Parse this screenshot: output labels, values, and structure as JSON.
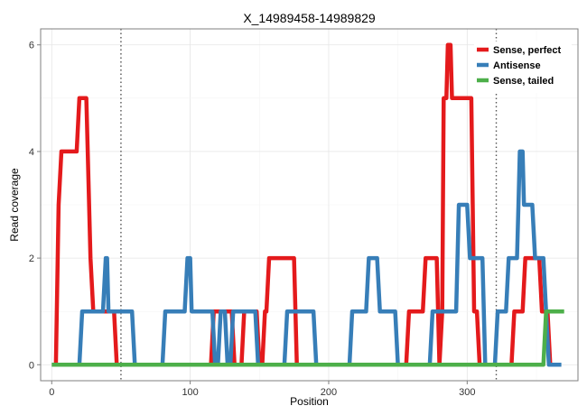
{
  "chart_data": {
    "type": "line",
    "title": "X_14989458-14989829",
    "xlabel": "Position",
    "ylabel": "Read coverage",
    "xlim": [
      -8,
      380
    ],
    "ylim": [
      -0.3,
      6.3
    ],
    "xticks": [
      0,
      100,
      200,
      300
    ],
    "yticks": [
      0,
      2,
      4,
      6
    ],
    "grid": true,
    "legend_position": "top-right",
    "vlines": [
      50,
      321
    ],
    "series": [
      {
        "name": "Sense, perfect",
        "color": "#e41a1c",
        "points": [
          [
            3,
            0
          ],
          [
            5,
            3
          ],
          [
            7,
            4
          ],
          [
            18,
            4
          ],
          [
            20,
            5
          ],
          [
            25,
            5
          ],
          [
            28,
            2
          ],
          [
            30,
            1
          ],
          [
            45,
            1
          ],
          [
            47,
            0
          ],
          [
            115,
            0
          ],
          [
            117,
            1
          ],
          [
            130,
            1
          ],
          [
            132,
            0
          ],
          [
            137,
            0
          ],
          [
            139,
            1
          ],
          [
            148,
            1
          ],
          [
            150,
            0
          ],
          [
            152,
            0
          ],
          [
            154,
            1
          ],
          [
            155,
            1
          ],
          [
            157,
            2
          ],
          [
            175,
            2
          ],
          [
            177,
            0
          ],
          [
            256,
            0
          ],
          [
            258,
            1
          ],
          [
            268,
            1
          ],
          [
            270,
            2
          ],
          [
            278,
            2
          ],
          [
            280,
            0
          ],
          [
            282,
            1
          ],
          [
            283,
            5
          ],
          [
            285,
            5
          ],
          [
            286,
            6
          ],
          [
            288,
            6
          ],
          [
            289,
            5
          ],
          [
            303,
            5
          ],
          [
            305,
            1
          ],
          [
            307,
            1
          ],
          [
            309,
            0
          ],
          [
            332,
            0
          ],
          [
            334,
            1
          ],
          [
            340,
            1
          ],
          [
            342,
            2
          ],
          [
            352,
            2
          ],
          [
            354,
            1
          ],
          [
            358,
            1
          ],
          [
            360,
            0
          ]
        ]
      },
      {
        "name": "Antisense",
        "color": "#377eb8",
        "points": [
          [
            20,
            0
          ],
          [
            22,
            1
          ],
          [
            37,
            1
          ],
          [
            39,
            2
          ],
          [
            40,
            2
          ],
          [
            41,
            1
          ],
          [
            58,
            1
          ],
          [
            60,
            0
          ],
          [
            80,
            0
          ],
          [
            82,
            1
          ],
          [
            96,
            1
          ],
          [
            98,
            2
          ],
          [
            100,
            2
          ],
          [
            101,
            1
          ],
          [
            116,
            1
          ],
          [
            118,
            0
          ],
          [
            120,
            0
          ],
          [
            122,
            1
          ],
          [
            125,
            1
          ],
          [
            127,
            0
          ],
          [
            129,
            0
          ],
          [
            131,
            1
          ],
          [
            147,
            1
          ],
          [
            149,
            0
          ],
          [
            168,
            0
          ],
          [
            170,
            1
          ],
          [
            189,
            1
          ],
          [
            191,
            0
          ],
          [
            215,
            0
          ],
          [
            217,
            1
          ],
          [
            227,
            1
          ],
          [
            229,
            2
          ],
          [
            235,
            2
          ],
          [
            237,
            1
          ],
          [
            248,
            1
          ],
          [
            250,
            0
          ],
          [
            273,
            0
          ],
          [
            275,
            1
          ],
          [
            292,
            1
          ],
          [
            294,
            3
          ],
          [
            300,
            3
          ],
          [
            302,
            2
          ],
          [
            311,
            2
          ],
          [
            313,
            0
          ],
          [
            320,
            0
          ],
          [
            322,
            1
          ],
          [
            328,
            1
          ],
          [
            330,
            2
          ],
          [
            336,
            2
          ],
          [
            337,
            3
          ],
          [
            338,
            4
          ],
          [
            340,
            4
          ],
          [
            341,
            3
          ],
          [
            347,
            3
          ],
          [
            349,
            2
          ],
          [
            355,
            2
          ],
          [
            357,
            1
          ],
          [
            359,
            0
          ],
          [
            368,
            0
          ]
        ]
      },
      {
        "name": "Sense, tailed",
        "color": "#4daf4a",
        "points": [
          [
            0,
            0
          ],
          [
            355,
            0
          ],
          [
            357,
            1
          ],
          [
            370,
            1
          ]
        ]
      }
    ]
  }
}
